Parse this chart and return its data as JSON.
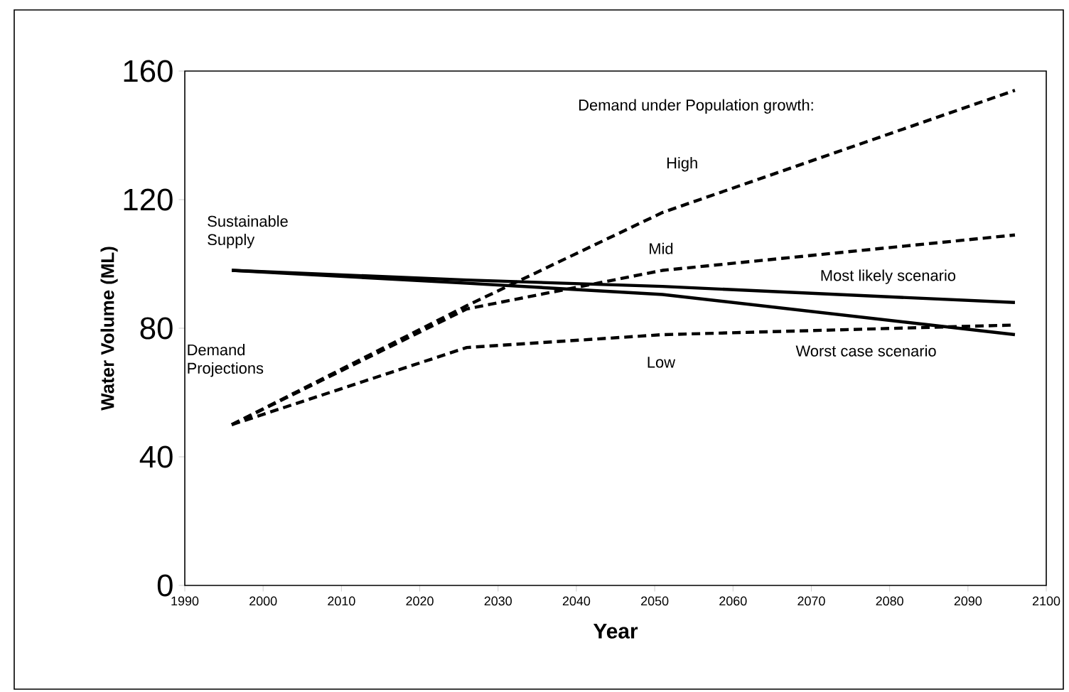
{
  "chart_data": {
    "type": "line",
    "xlabel": "Year",
    "ylabel": "Water Volume (ML)",
    "x": [
      1996,
      2026,
      2051,
      2096
    ],
    "series": [
      {
        "color": "#000000",
        "line_style": "solid",
        "values": [
          98,
          95,
          93,
          88
        ]
      },
      {
        "color": "#000000",
        "line_style": "solid",
        "values": [
          98,
          94,
          90.5,
          78
        ]
      },
      {
        "color": "#000000",
        "line_style": "dashed",
        "values": [
          50,
          87,
          116,
          154
        ]
      },
      {
        "color": "#000000",
        "line_style": "dashed",
        "values": [
          50,
          86,
          98,
          109
        ]
      },
      {
        "color": "#000000",
        "line_style": "dashed",
        "values": [
          50,
          74,
          78,
          81
        ]
      }
    ],
    "xlim": [
      1990,
      2100
    ],
    "xticks": [
      1990,
      2000,
      2010,
      2020,
      2030,
      2040,
      2050,
      2060,
      2070,
      2080,
      2090,
      2100
    ],
    "ylim": [
      0,
      160
    ],
    "yticks": [
      0,
      40,
      80,
      120,
      160
    ],
    "grid": false,
    "marker": "none",
    "annotations": [
      "Demand under Population growth:",
      "High",
      "Mid",
      "Most likely scenario",
      "Worst case scenario",
      "Low",
      "Sustainable Supply",
      "Demand Projections"
    ]
  }
}
